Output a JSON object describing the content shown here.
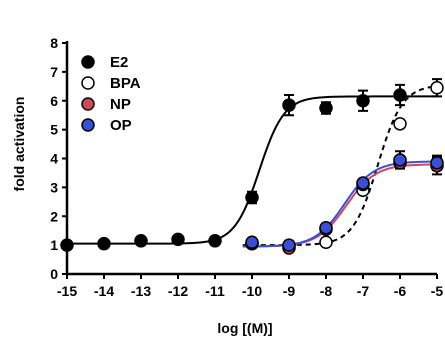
{
  "chart_data": {
    "type": "scatter",
    "title": "",
    "xlabel": "log [(M)]",
    "ylabel": "fold activation",
    "xlim": [
      -15,
      -5
    ],
    "ylim": [
      0,
      8
    ],
    "x_ticks": [
      -15,
      -14,
      -13,
      -12,
      -11,
      -10,
      -9,
      -8,
      -7,
      -6,
      -5
    ],
    "x_tick_labels": [
      "-15",
      "-14",
      "-13",
      "-12",
      "-11",
      "-10",
      "-9",
      "-8",
      "-7",
      "-6",
      "-5"
    ],
    "y_ticks": [
      0,
      1,
      2,
      3,
      4,
      5,
      6,
      7,
      8
    ],
    "y_tick_labels": [
      "0",
      "1",
      "2",
      "3",
      "4",
      "5",
      "6",
      "7",
      "8"
    ],
    "legend_position": "top-left",
    "series": [
      {
        "name": "E2",
        "marker": "filled",
        "color": "#000000",
        "fill": "#000000",
        "curve_style": "solid",
        "points": [
          {
            "x": -15,
            "y": 1.0
          },
          {
            "x": -14,
            "y": 1.05
          },
          {
            "x": -13,
            "y": 1.15
          },
          {
            "x": -12,
            "y": 1.2
          },
          {
            "x": -11,
            "y": 1.15
          },
          {
            "x": -10,
            "y": 2.65,
            "err": 0.2
          },
          {
            "x": -9,
            "y": 5.85,
            "err": 0.35
          },
          {
            "x": -8,
            "y": 5.75,
            "err": 0.2
          },
          {
            "x": -7,
            "y": 6.0,
            "err": 0.35
          },
          {
            "x": -6,
            "y": 6.2,
            "err": 0.35
          }
        ],
        "fit": {
          "bottom": 1.05,
          "top": 6.15,
          "logEC50": -9.8,
          "hill": 1.3
        }
      },
      {
        "name": "BPA",
        "marker": "open",
        "color": "#000000",
        "fill": "#ffffff",
        "curve_style": "dashed",
        "points": [
          {
            "x": -10,
            "y": 1.05
          },
          {
            "x": -9,
            "y": 0.95
          },
          {
            "x": -8,
            "y": 1.1
          },
          {
            "x": -7,
            "y": 2.9
          },
          {
            "x": -6,
            "y": 5.2
          },
          {
            "x": -5,
            "y": 6.45,
            "err": 0.3
          }
        ],
        "fit": {
          "bottom": 1.0,
          "top": 6.55,
          "logEC50": -6.6,
          "hill": 1.3
        }
      },
      {
        "name": "NP",
        "marker": "filled",
        "color": "#000000",
        "fill": "#d0485a",
        "curve_style": "solid",
        "line_color": "#d0485a",
        "points": [
          {
            "x": -10,
            "y": 1.05
          },
          {
            "x": -9,
            "y": 0.9
          },
          {
            "x": -8,
            "y": 1.55
          },
          {
            "x": -7,
            "y": 3.1
          },
          {
            "x": -6,
            "y": 3.85
          },
          {
            "x": -5,
            "y": 3.75,
            "err": 0.3
          }
        ],
        "fit": {
          "bottom": 0.95,
          "top": 3.8,
          "logEC50": -7.45,
          "hill": 1.1
        }
      },
      {
        "name": "OP",
        "marker": "filled",
        "color": "#000000",
        "fill": "#3b4fd6",
        "curve_style": "solid",
        "line_color": "#3b4fd6",
        "points": [
          {
            "x": -10,
            "y": 1.1
          },
          {
            "x": -9,
            "y": 1.0
          },
          {
            "x": -8,
            "y": 1.6
          },
          {
            "x": -7,
            "y": 3.15
          },
          {
            "x": -6,
            "y": 3.95,
            "err": 0.3
          },
          {
            "x": -5,
            "y": 3.85,
            "err": 0.25
          }
        ],
        "fit": {
          "bottom": 0.95,
          "top": 3.9,
          "logEC50": -7.5,
          "hill": 1.1
        }
      }
    ]
  }
}
